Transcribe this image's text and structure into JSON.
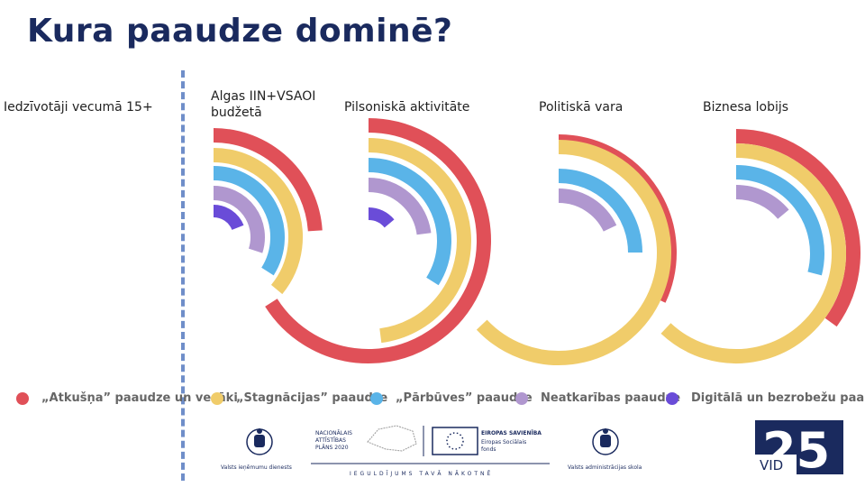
{
  "title": "Kura paaudze dominē?",
  "colors": {
    "Atkusna": "#e05058",
    "Stagnacijas": "#f0cc6a",
    "Parbuves": "#5ab4e8",
    "Neatkaribas": "#b097cf",
    "Digitala": "#6a4cd8"
  },
  "chart_data": {
    "type": "radial-bar",
    "title": "Kura paaudze dominē?",
    "series_order": [
      "Atkusna",
      "Stagnacijas",
      "Parbuves",
      "Neatkaribas",
      "Digitala"
    ],
    "categories": [
      {
        "label": "Iedzīvotāji vecumā 15+",
        "values": {
          "Atkusna": null,
          "Stagnacijas": null,
          "Parbuves": null,
          "Neatkaribas": null,
          "Digitala": null
        }
      },
      {
        "label": "Algas IIN+VSAOI budžetā",
        "values": {
          "Atkusna": 24,
          "Stagnacijas": 36,
          "Parbuves": 34,
          "Neatkaribas": 30,
          "Digitala": 19
        }
      },
      {
        "label": "Pilsoniskā aktivitāte",
        "values": {
          "Atkusna": 66,
          "Stagnacijas": 48,
          "Parbuves": 34,
          "Neatkaribas": 23,
          "Digitala": 14
        }
      },
      {
        "label": "Politiskā vara",
        "values": {
          "Atkusna": 32,
          "Stagnacijas": 63,
          "Parbuves": 25,
          "Neatkaribas": 18,
          "Digitala": 0
        }
      },
      {
        "label": "Biznesa lobijs",
        "values": {
          "Atkusna": 35,
          "Stagnacijas": 62,
          "Parbuves": 29,
          "Neatkaribas": 14,
          "Digitala": 0
        }
      }
    ],
    "unit": "percent of full circle",
    "legend": [
      {
        "key": "Atkusna",
        "label": "„Atkušņa” paaudze un vecāki"
      },
      {
        "key": "Stagnacijas",
        "label": "„Stagnācijas” paaudze"
      },
      {
        "key": "Parbuves",
        "label": "„Pārbūves” paaudze"
      },
      {
        "key": "Neatkaribas",
        "label": "Neatkarības paaudze"
      },
      {
        "key": "Digitala",
        "label": "Digitālā un bezrobežu paaudze"
      }
    ],
    "legend_position": "bottom"
  },
  "logos": {
    "vid": "Valsts ieņēmumu dienests",
    "nap": [
      "NACIONĀLAIS",
      "ATTĪSTĪBAS",
      "PLĀNS 2020"
    ],
    "eu_title": "EIROPAS SAVIENĪBA",
    "eu_sub": [
      "Eiropas Sociālais",
      "fonds"
    ],
    "slogan": "IEGULDĪJUMS TAVĀ NĀKOTNĒ",
    "vas": "Valsts administrācijas skola",
    "vid25_number": "25",
    "vid25_text": "VID"
  }
}
